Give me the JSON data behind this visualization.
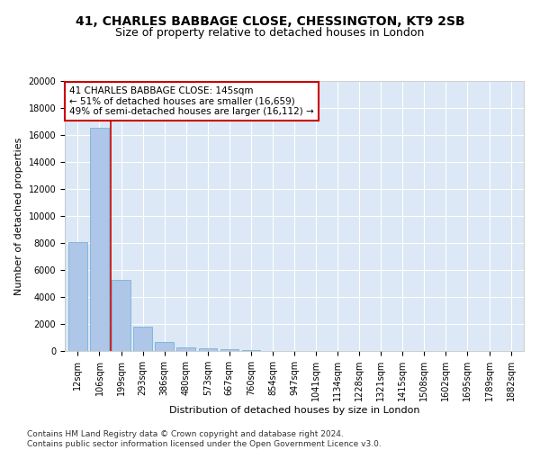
{
  "title_line1": "41, CHARLES BABBAGE CLOSE, CHESSINGTON, KT9 2SB",
  "title_line2": "Size of property relative to detached houses in London",
  "xlabel": "Distribution of detached houses by size in London",
  "ylabel": "Number of detached properties",
  "bar_color": "#aec6e8",
  "bar_edge_color": "#6aaad4",
  "background_color": "#dce8f5",
  "grid_color": "#ffffff",
  "categories": [
    "12sqm",
    "106sqm",
    "199sqm",
    "293sqm",
    "386sqm",
    "480sqm",
    "573sqm",
    "667sqm",
    "760sqm",
    "854sqm",
    "947sqm",
    "1041sqm",
    "1134sqm",
    "1228sqm",
    "1321sqm",
    "1415sqm",
    "1508sqm",
    "1602sqm",
    "1695sqm",
    "1789sqm",
    "1882sqm"
  ],
  "values": [
    8100,
    16500,
    5250,
    1800,
    700,
    280,
    175,
    110,
    70,
    0,
    0,
    0,
    0,
    0,
    0,
    0,
    0,
    0,
    0,
    0,
    0
  ],
  "ylim": [
    0,
    20000
  ],
  "yticks": [
    0,
    2000,
    4000,
    6000,
    8000,
    10000,
    12000,
    14000,
    16000,
    18000,
    20000
  ],
  "vline_color": "#cc0000",
  "annotation_text": "41 CHARLES BABBAGE CLOSE: 145sqm\n← 51% of detached houses are smaller (16,659)\n49% of semi-detached houses are larger (16,112) →",
  "annotation_box_color": "#ffffff",
  "annotation_box_edgecolor": "#cc0000",
  "footer_text": "Contains HM Land Registry data © Crown copyright and database right 2024.\nContains public sector information licensed under the Open Government Licence v3.0.",
  "title_fontsize": 10,
  "subtitle_fontsize": 9,
  "axis_label_fontsize": 8,
  "tick_fontsize": 7,
  "annotation_fontsize": 7.5,
  "footer_fontsize": 6.5
}
